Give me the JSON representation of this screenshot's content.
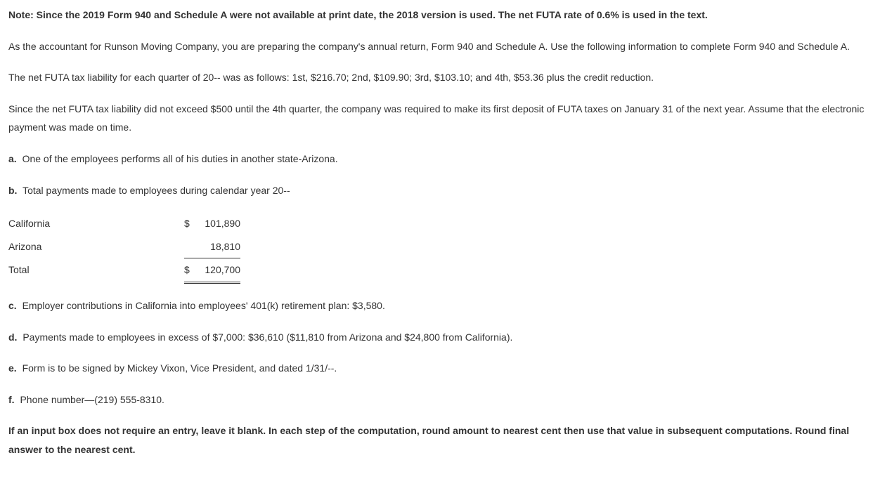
{
  "note": "Note: Since the 2019 Form 940 and Schedule A were not available at print date, the 2018 version is used. The net FUTA rate of 0.6% is used in the text.",
  "intro1": "As the accountant for Runson Moving Company, you are preparing the company's annual return, Form 940 and Schedule A. Use the following information to complete Form 940 and Schedule A.",
  "intro2": "The net FUTA tax liability for each quarter of 20-- was as follows: 1st, $216.70; 2nd, $109.90; 3rd, $103.10; and 4th, $53.36 plus the credit reduction.",
  "intro3": "Since the net FUTA tax liability did not exceed $500 until the 4th quarter, the company was required to make its first deposit of FUTA taxes on January 31 of the next year. Assume that the electronic payment was made on time.",
  "items": {
    "a": {
      "label": "a.",
      "text": "One of the employees performs all of his duties in another state-Arizona."
    },
    "b": {
      "label": "b.",
      "text": "Total payments made to employees during calendar year 20--"
    },
    "c": {
      "label": "c.",
      "text": "Employer contributions in California into employees' 401(k) retirement plan: $3,580."
    },
    "d": {
      "label": "d.",
      "text": "Payments made to employees in excess of $7,000: $36,610 ($11,810 from Arizona and $24,800 from California)."
    },
    "e": {
      "label": "e.",
      "text": "Form is to be signed by Mickey Vixon, Vice President, and dated 1/31/--."
    },
    "f": {
      "label": "f.",
      "text": "Phone number—(219) 555-8310."
    }
  },
  "payments": {
    "rows": {
      "ca": {
        "label": "California",
        "dollar": "$",
        "amount": "101,890"
      },
      "az": {
        "label": "Arizona",
        "dollar": "",
        "amount": "18,810"
      },
      "total": {
        "label": "Total",
        "dollar": "$",
        "amount": "120,700"
      }
    }
  },
  "footer": "If an input box does not require an entry, leave it blank. In each step of the computation, round amount to nearest cent then use that value in subsequent computations. Round final answer to the nearest cent."
}
